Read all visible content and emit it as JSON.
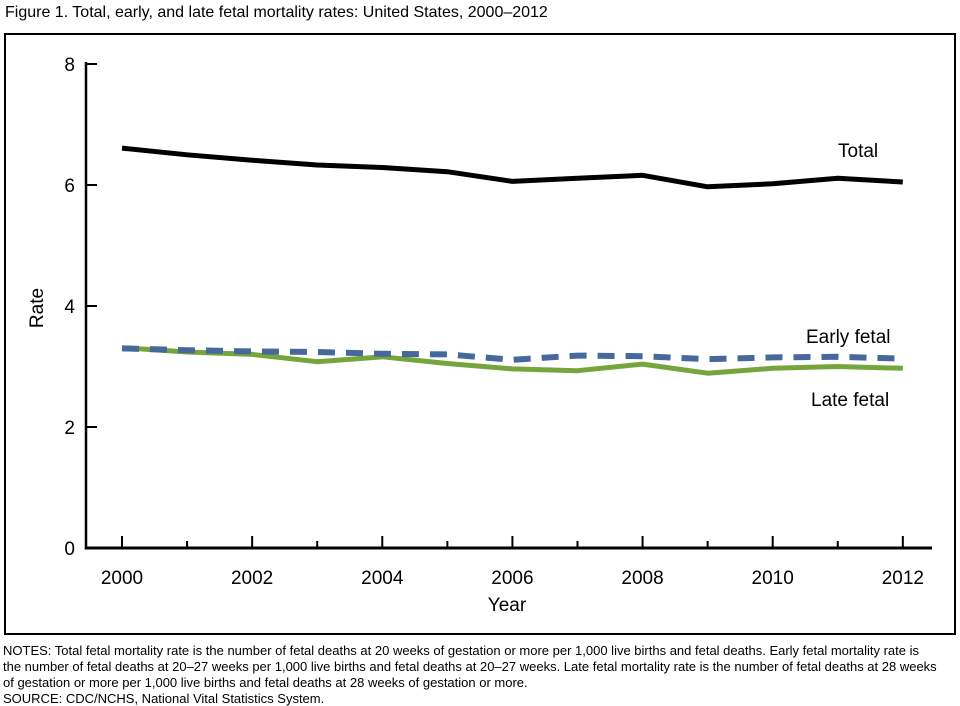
{
  "title": "Figure 1. Total, early, and late fetal mortality rates: United States, 2000–2012",
  "chart_data": {
    "type": "line",
    "title": "Figure 1. Total, early, and late fetal mortality rates: United States, 2000–2012",
    "xlabel": "Year",
    "ylabel": "Rate",
    "ylim": [
      0,
      8
    ],
    "xlim": [
      2000,
      2012
    ],
    "yticks": [
      0,
      2,
      4,
      6,
      8
    ],
    "xticks_major": [
      2000,
      2002,
      2004,
      2006,
      2008,
      2010,
      2012
    ],
    "xticks_minor": [
      2001,
      2003,
      2005,
      2007,
      2009,
      2011
    ],
    "grid": "off",
    "legend_position": "inline-right-of-lines",
    "x": [
      2000,
      2001,
      2002,
      2003,
      2004,
      2005,
      2006,
      2007,
      2008,
      2009,
      2010,
      2011,
      2012
    ],
    "series": [
      {
        "name": "Total",
        "color": "#000000",
        "style": "solid",
        "stroke_width": 5,
        "values": [
          6.61,
          6.5,
          6.41,
          6.33,
          6.29,
          6.22,
          6.06,
          6.11,
          6.16,
          5.97,
          6.02,
          6.11,
          6.05
        ]
      },
      {
        "name": "Early fetal",
        "color": "#46689b",
        "style": "dashed",
        "stroke_width": 6,
        "values": [
          3.3,
          3.27,
          3.25,
          3.24,
          3.21,
          3.2,
          3.11,
          3.18,
          3.17,
          3.12,
          3.15,
          3.16,
          3.13
        ]
      },
      {
        "name": "Late fetal",
        "color": "#76a53c",
        "style": "solid",
        "stroke_width": 5,
        "values": [
          3.31,
          3.24,
          3.2,
          3.08,
          3.16,
          3.05,
          2.96,
          2.93,
          3.04,
          2.89,
          2.97,
          3.0,
          2.97
        ]
      }
    ]
  },
  "notes": {
    "lines": [
      "NOTES: Total fetal mortality rate is the number of fetal deaths at 20 weeks of gestation or more per 1,000 live births and fetal deaths. Early fetal mortality rate is",
      "the number of fetal deaths at 20–27 weeks per 1,000 live births and fetal deaths at 20–27 weeks. Late fetal mortality rate is the number of fetal deaths at 28 weeks",
      "of gestation or more per 1,000 live births and fetal deaths at 28 weeks of gestation or more.",
      "SOURCE: CDC/NCHS, National Vital Statistics System."
    ]
  }
}
